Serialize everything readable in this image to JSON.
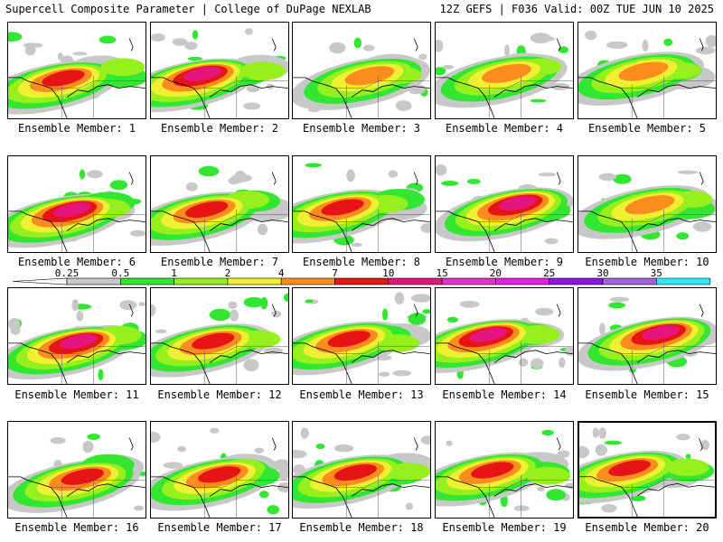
{
  "header": {
    "title": "Supercell Composite Parameter | College of DuPage NEXLAB",
    "run_info": "12Z GEFS | F036 Valid: 00Z TUE JUN 10 2025"
  },
  "member_label_prefix": "Ensemble Member: ",
  "members": [
    {
      "id": "1",
      "peak": 7
    },
    {
      "id": "2",
      "peak": 10
    },
    {
      "id": "3",
      "peak": 4
    },
    {
      "id": "4",
      "peak": 4
    },
    {
      "id": "5",
      "peak": 4
    },
    {
      "id": "6",
      "peak": 10
    },
    {
      "id": "7",
      "peak": 7
    },
    {
      "id": "8",
      "peak": 7
    },
    {
      "id": "9",
      "peak": 10
    },
    {
      "id": "10",
      "peak": 4
    },
    {
      "id": "11",
      "peak": 10
    },
    {
      "id": "12",
      "peak": 7
    },
    {
      "id": "13",
      "peak": 7
    },
    {
      "id": "14",
      "peak": 10
    },
    {
      "id": "15",
      "peak": 10
    },
    {
      "id": "16",
      "peak": 7
    },
    {
      "id": "17",
      "peak": 7
    },
    {
      "id": "18",
      "peak": 7
    },
    {
      "id": "19",
      "peak": 7
    },
    {
      "id": "20",
      "peak": 7
    }
  ],
  "highlighted_member": "20",
  "legend": {
    "labels": [
      "0.25",
      "0.5",
      "1",
      "2",
      "4",
      "7",
      "10",
      "15",
      "20",
      "25",
      "30",
      "35"
    ],
    "colors": [
      "#c8c8c8",
      "#32e632",
      "#96f01e",
      "#f0f032",
      "#ff8c1e",
      "#e61414",
      "#e6147d",
      "#e632c8",
      "#e61ee6",
      "#8c14e6",
      "#a064dc",
      "#32e6f0"
    ]
  }
}
